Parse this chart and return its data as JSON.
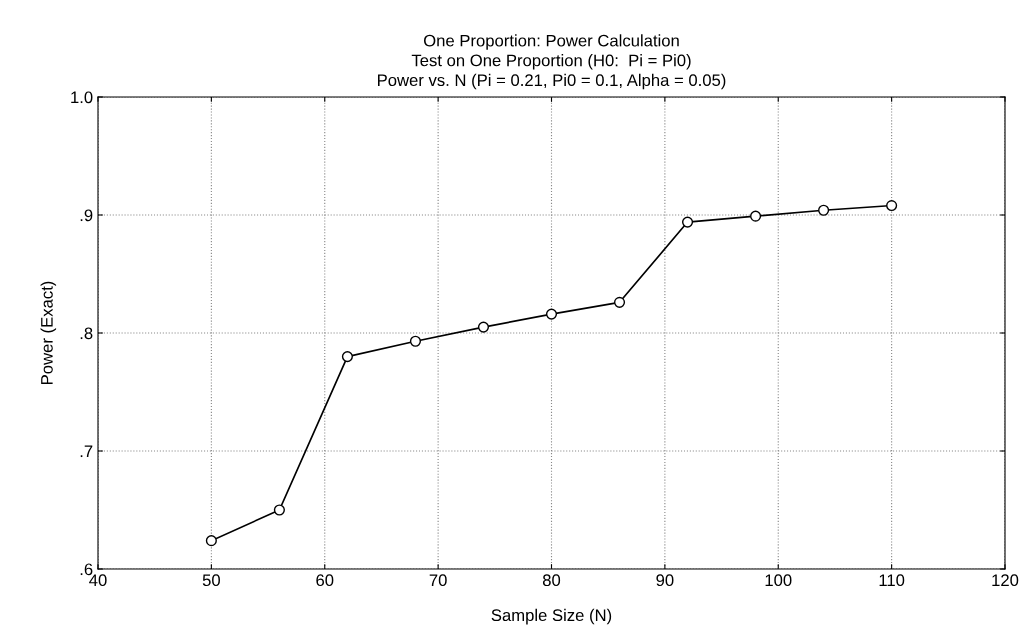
{
  "chart_data": {
    "type": "line",
    "title": "One Proportion: Power Calculation\nTest on One Proportion (H0:  Pi = Pi0)\nPower vs. N (Pi = 0.21, Pi0 = 0.1, Alpha = 0.05)",
    "xlabel": "Sample Size (N)",
    "ylabel": "Power (Exact)",
    "x": [
      50,
      56,
      62,
      68,
      74,
      80,
      86,
      92,
      98,
      104,
      110
    ],
    "series": [
      {
        "color": "#000000",
        "values": [
          0.624,
          0.65,
          0.78,
          0.793,
          0.805,
          0.816,
          0.826,
          0.894,
          0.899,
          0.904,
          0.908
        ]
      }
    ],
    "xlim": [
      40,
      120
    ],
    "xticks": [
      40,
      50,
      60,
      70,
      80,
      90,
      100,
      110,
      120
    ],
    "ylim": [
      0.6,
      1.0
    ],
    "yticks": [
      {
        "value": 0.6,
        "label": ".6"
      },
      {
        "value": 0.7,
        "label": ".7"
      },
      {
        "value": 0.8,
        "label": ".8"
      },
      {
        "value": 0.9,
        "label": ".9"
      },
      {
        "value": 1.0,
        "label": "1.0"
      }
    ],
    "grid": true,
    "marker": "circle",
    "line_style": "solid",
    "legend": false
  }
}
